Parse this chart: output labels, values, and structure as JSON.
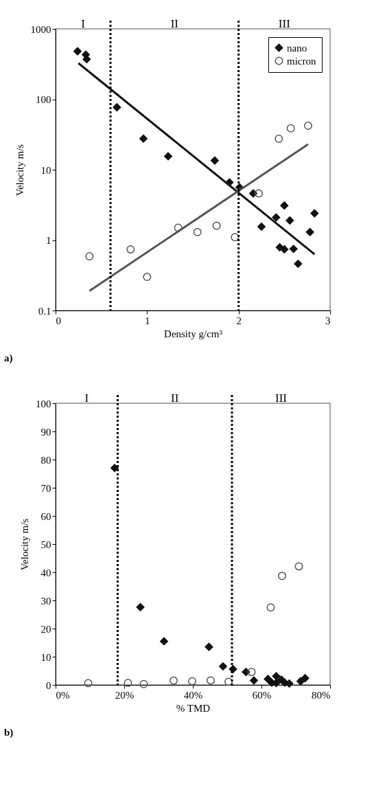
{
  "chart_data": [
    {
      "type": "scatter",
      "xlabel": "Density  g/cm³",
      "ylabel": "Velocity m/s",
      "xlim": [
        0,
        3
      ],
      "ylim": [
        0.1,
        1000
      ],
      "xticks": [
        0,
        1,
        2,
        3
      ],
      "yticks": [
        0.1,
        1,
        10,
        100,
        1000
      ],
      "log": "y",
      "grid": false,
      "legend": "top right",
      "ref_lines": [
        {
          "axis": "x",
          "value": 0.6,
          "color": "#000000",
          "line_style": "dotted"
        },
        {
          "axis": "x",
          "value": 2.0,
          "color": "#000000",
          "line_style": "dotted"
        }
      ],
      "annotations": [
        "I",
        "II",
        "III",
        "a)"
      ],
      "series": [
        {
          "name": "nano",
          "color": "#111111",
          "marker": "diamond",
          "x": [
            0.24,
            0.33,
            0.34,
            0.67,
            0.96,
            1.23,
            1.74,
            1.9,
            2.01,
            2.16,
            2.5,
            2.41,
            2.83,
            2.56,
            2.25,
            2.78,
            2.45,
            2.5,
            2.6,
            2.65
          ],
          "values": [
            480,
            430,
            370,
            77,
            27.6,
            15.5,
            13.5,
            6.6,
            5.6,
            4.6,
            3.1,
            2.1,
            2.4,
            1.9,
            1.55,
            1.3,
            0.79,
            0.74,
            0.75,
            0.46
          ]
        },
        {
          "name": "micron",
          "color": "#555555",
          "marker": "circle",
          "x": [
            0.37,
            0.82,
            1.0,
            1.34,
            1.55,
            1.76,
            1.96,
            2.22,
            2.44,
            2.57,
            2.76
          ],
          "values": [
            0.59,
            0.74,
            0.3,
            1.5,
            1.3,
            1.6,
            1.1,
            4.6,
            27.5,
            38.7,
            42.1
          ]
        },
        {
          "type": "line",
          "color": "#111111",
          "x": [
            0.25,
            2.83
          ],
          "values": [
            325,
            0.63
          ]
        },
        {
          "type": "line",
          "color": "#555555",
          "x": [
            0.37,
            2.76
          ],
          "values": [
            0.19,
            23
          ]
        }
      ]
    },
    {
      "type": "scatter",
      "xlabel": "% TMD",
      "ylabel": "Velocity m/s",
      "xlim": [
        0,
        80
      ],
      "ylim": [
        0,
        100
      ],
      "xticks": [
        {
          "value": 0,
          "label": "0%"
        },
        {
          "value": 20,
          "label": "20%"
        },
        {
          "value": 40,
          "label": "40%"
        },
        {
          "value": 60,
          "label": "60%"
        },
        {
          "value": 80,
          "label": "80%"
        }
      ],
      "yticks": [
        0,
        10,
        20,
        30,
        40,
        50,
        60,
        70,
        80,
        90,
        100
      ],
      "grid": false,
      "legend": "top right",
      "ref_lines": [
        {
          "axis": "x",
          "value": 18.1,
          "color": "#000000",
          "line_style": "dotted"
        },
        {
          "axis": "x",
          "value": 51.4,
          "color": "#000000",
          "line_style": "dotted"
        }
      ],
      "annotations": [
        "I",
        "II",
        "III",
        "b)"
      ],
      "series": [
        {
          "name": "nano",
          "color": "#111111",
          "marker": "diamond",
          "x": [
            17.2,
            24.7,
            31.6,
            44.7,
            48.8,
            51.7,
            55.5,
            64.3,
            61.9,
            72.7,
            65.8,
            57.8,
            71.4,
            63.0,
            64.3,
            66.8,
            68.1
          ],
          "values": [
            77,
            27.6,
            15.5,
            13.5,
            6.6,
            5.6,
            4.6,
            3.1,
            2.1,
            2.4,
            1.9,
            1.6,
            1.3,
            0.8,
            0.7,
            0.8,
            0.5
          ]
        },
        {
          "name": "micron",
          "color": "#555555",
          "marker": "circle",
          "x": [
            9.5,
            21.1,
            25.7,
            34.4,
            39.8,
            45.2,
            50.4,
            57.1,
            62.7,
            66.0,
            70.9
          ],
          "values": [
            0.6,
            0.7,
            0.3,
            1.5,
            1.3,
            1.6,
            1.1,
            4.6,
            27.5,
            38.7,
            42.1
          ]
        }
      ]
    }
  ]
}
